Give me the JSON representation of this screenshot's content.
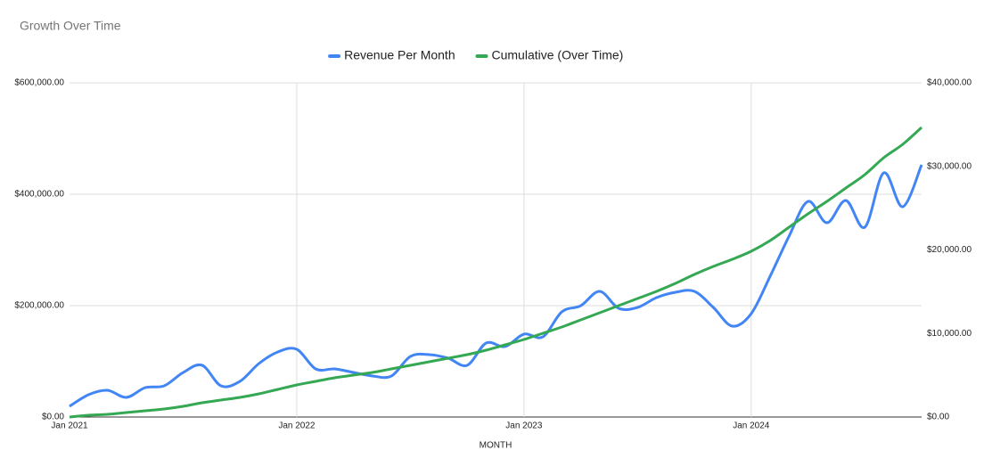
{
  "chart_data": {
    "type": "line",
    "title": "Growth Over Time",
    "x_label": "MONTH",
    "categories": [
      "Jan 2021",
      null,
      null,
      null,
      null,
      null,
      null,
      null,
      null,
      null,
      null,
      null,
      "Jan 2022",
      null,
      null,
      null,
      null,
      null,
      null,
      null,
      null,
      null,
      null,
      null,
      "Jan 2023",
      null,
      null,
      null,
      null,
      null,
      null,
      null,
      null,
      null,
      null,
      null,
      "Jan 2024",
      null,
      null,
      null,
      null,
      null,
      null,
      null,
      null,
      null
    ],
    "series": [
      {
        "name": "Revenue Per Month",
        "color": "#4285f4",
        "axis": "y2",
        "values": [
          1280,
          2670,
          3200,
          2350,
          3520,
          3730,
          5330,
          6190,
          3730,
          4270,
          6400,
          7790,
          8110,
          5760,
          5760,
          5330,
          4910,
          4910,
          7250,
          7470,
          7040,
          6190,
          8850,
          8430,
          9920,
          9600,
          12590,
          13330,
          15040,
          13010,
          13120,
          14290,
          14930,
          15040,
          13120,
          10880,
          12370,
          16850,
          21650,
          25810,
          23250,
          25920,
          22720,
          29230,
          25170,
          30190
        ]
      },
      {
        "name": "Cumulative (Over Time)",
        "color": "#34a853",
        "values": [
          0,
          3200,
          4800,
          8000,
          11200,
          14400,
          19200,
          25600,
          30400,
          35200,
          41600,
          49600,
          57600,
          64000,
          70400,
          75200,
          80000,
          86400,
          92800,
          99200,
          105600,
          112000,
          120000,
          129600,
          139200,
          150400,
          161600,
          174400,
          187200,
          200000,
          212800,
          225600,
          240000,
          256000,
          270400,
          283200,
          297600,
          316800,
          340800,
          364800,
          387200,
          411200,
          435200,
          465600,
          489600,
          520000
        ]
      }
    ],
    "ylim": [
      0,
      600000
    ],
    "yticks": [
      {
        "value": 0,
        "label": "$0.00"
      },
      {
        "value": 200000,
        "label": "$200,000.00"
      },
      {
        "value": 400000,
        "label": "$400,000.00"
      },
      {
        "value": 600000,
        "label": "$600,000.00"
      }
    ],
    "y2lim": [
      0,
      40000
    ],
    "y2ticks": [
      {
        "value": 0,
        "label": "$0.00"
      },
      {
        "value": 10000,
        "label": "$10,000.00"
      },
      {
        "value": 20000,
        "label": "$20,000.00"
      },
      {
        "value": 30000,
        "label": "$30,000.00"
      },
      {
        "value": 40000,
        "label": "$40,000.00"
      }
    ],
    "grid": true,
    "legend": "top"
  }
}
